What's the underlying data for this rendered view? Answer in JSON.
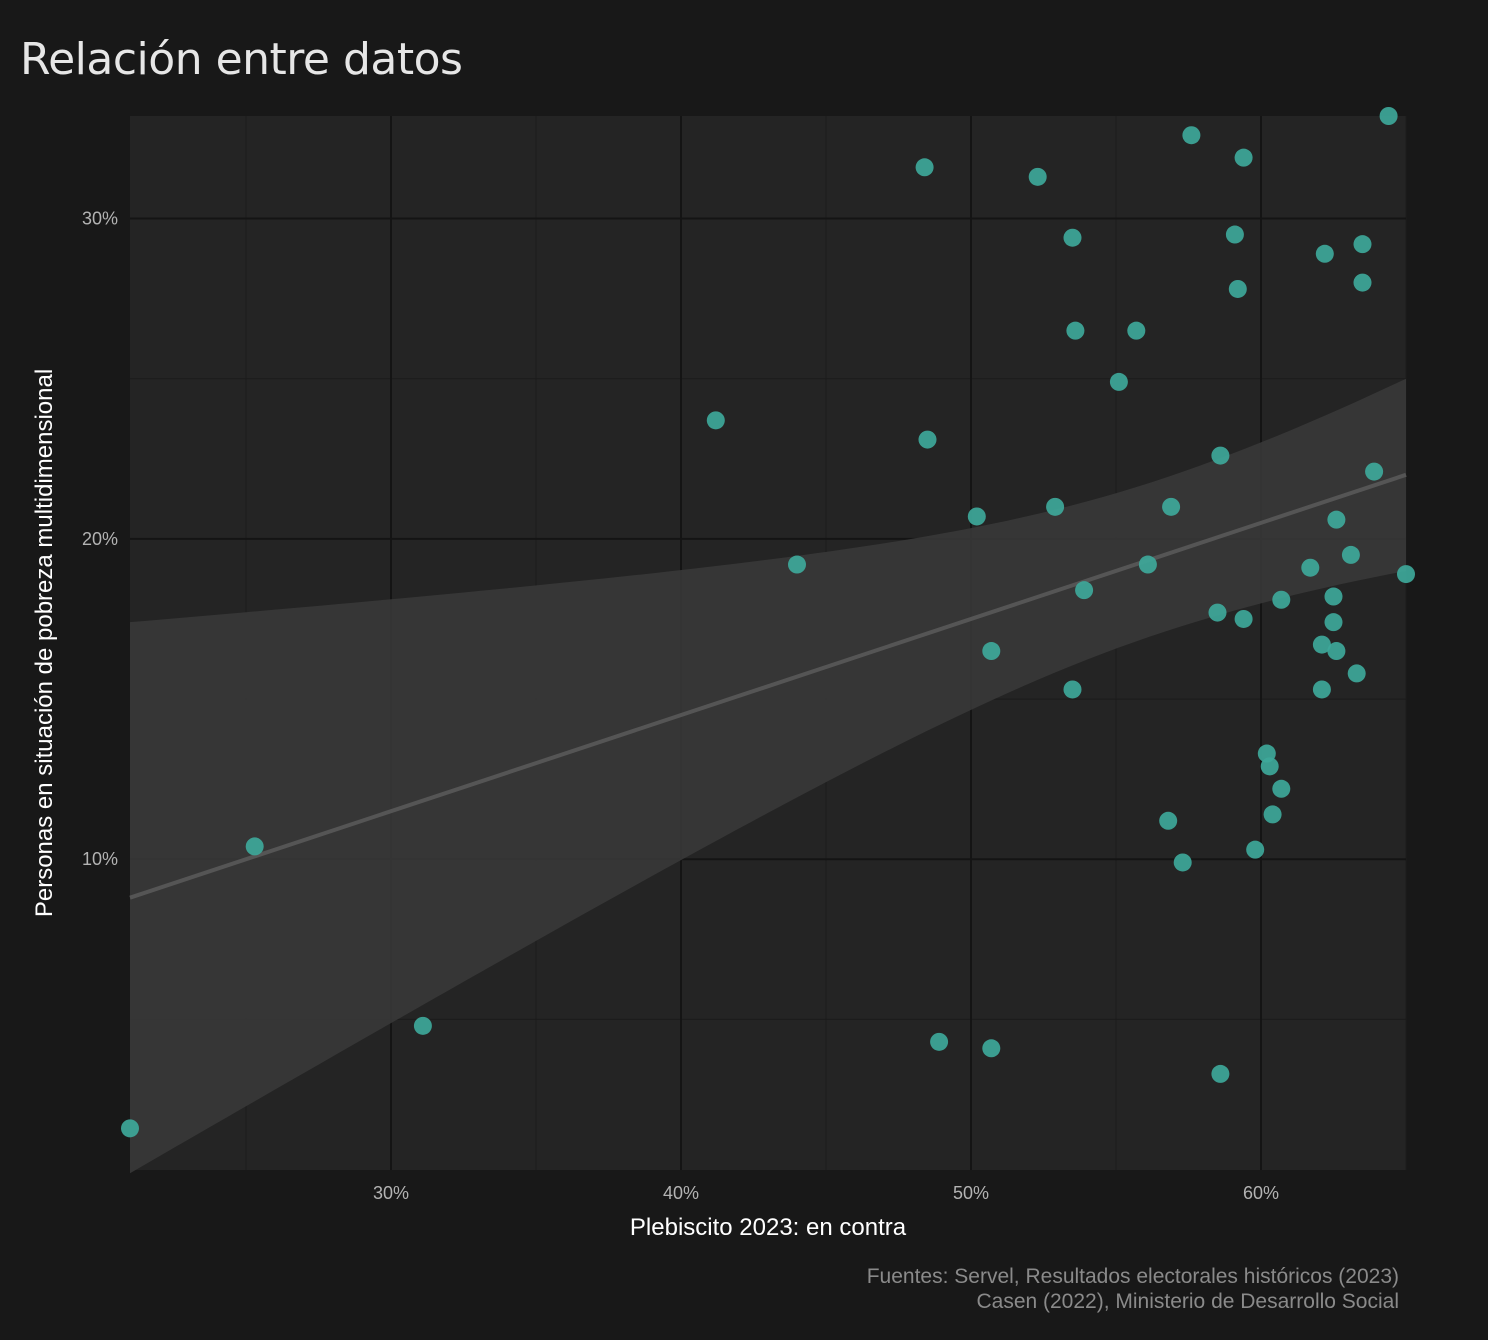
{
  "title": "Relación entre datos",
  "caption": [
    "Fuentes: Servel, Resultados electorales históricos (2023)",
    "Casen (2022), Ministerio de Desarrollo Social"
  ],
  "colors": {
    "background": "#181818",
    "panel": "#242424",
    "point": "#3ea89a",
    "trend": "#555555",
    "band": "#3a3a3a"
  },
  "chart_data": {
    "type": "scatter",
    "xlabel": "Plebiscito 2023: en contra",
    "ylabel": "Personas en situación de pobreza multidimensional",
    "xlim": [
      21,
      65
    ],
    "ylim": [
      0.3,
      33.2
    ],
    "xticks": [
      30,
      40,
      50,
      60
    ],
    "xtick_labels": [
      "30%",
      "40%",
      "50%",
      "60%"
    ],
    "yticks": [
      10,
      20,
      30
    ],
    "ytick_labels": [
      "10%",
      "20%",
      "30%"
    ],
    "grid": true,
    "trend": {
      "method": "linear",
      "x": [
        21,
        65
      ],
      "y": [
        8.8,
        22.0
      ],
      "ci_lower": [
        0.2,
        19.0
      ],
      "ci_upper": [
        17.2,
        25.0
      ]
    },
    "points": [
      {
        "x": 21.0,
        "y": 1.6
      },
      {
        "x": 25.3,
        "y": 10.4
      },
      {
        "x": 31.1,
        "y": 4.8
      },
      {
        "x": 41.2,
        "y": 23.7
      },
      {
        "x": 44.0,
        "y": 19.2
      },
      {
        "x": 48.4,
        "y": 31.6
      },
      {
        "x": 48.5,
        "y": 23.1
      },
      {
        "x": 48.9,
        "y": 4.3
      },
      {
        "x": 50.2,
        "y": 20.7
      },
      {
        "x": 50.7,
        "y": 16.5
      },
      {
        "x": 50.7,
        "y": 4.1
      },
      {
        "x": 52.3,
        "y": 31.3
      },
      {
        "x": 52.9,
        "y": 21.0
      },
      {
        "x": 53.5,
        "y": 29.4
      },
      {
        "x": 53.5,
        "y": 15.3
      },
      {
        "x": 53.6,
        "y": 26.5
      },
      {
        "x": 53.9,
        "y": 18.4
      },
      {
        "x": 55.1,
        "y": 24.9
      },
      {
        "x": 55.7,
        "y": 26.5
      },
      {
        "x": 56.1,
        "y": 19.2
      },
      {
        "x": 56.8,
        "y": 11.2
      },
      {
        "x": 56.9,
        "y": 21.0
      },
      {
        "x": 57.3,
        "y": 9.9
      },
      {
        "x": 57.6,
        "y": 32.6
      },
      {
        "x": 58.5,
        "y": 17.7
      },
      {
        "x": 58.6,
        "y": 22.6
      },
      {
        "x": 58.6,
        "y": 3.3
      },
      {
        "x": 59.1,
        "y": 29.5
      },
      {
        "x": 59.2,
        "y": 27.8
      },
      {
        "x": 59.4,
        "y": 31.9
      },
      {
        "x": 59.4,
        "y": 17.5
      },
      {
        "x": 59.8,
        "y": 10.3
      },
      {
        "x": 60.2,
        "y": 13.3
      },
      {
        "x": 60.3,
        "y": 12.9
      },
      {
        "x": 60.4,
        "y": 11.4
      },
      {
        "x": 60.7,
        "y": 18.1
      },
      {
        "x": 60.7,
        "y": 12.2
      },
      {
        "x": 61.7,
        "y": 19.1
      },
      {
        "x": 62.1,
        "y": 16.7
      },
      {
        "x": 62.1,
        "y": 15.3
      },
      {
        "x": 62.2,
        "y": 28.9
      },
      {
        "x": 62.5,
        "y": 18.2
      },
      {
        "x": 62.5,
        "y": 17.4
      },
      {
        "x": 62.6,
        "y": 16.5
      },
      {
        "x": 62.6,
        "y": 20.6
      },
      {
        "x": 63.1,
        "y": 19.5
      },
      {
        "x": 63.3,
        "y": 15.8
      },
      {
        "x": 63.5,
        "y": 29.2
      },
      {
        "x": 63.5,
        "y": 28.0
      },
      {
        "x": 63.9,
        "y": 22.1
      },
      {
        "x": 64.4,
        "y": 33.2
      },
      {
        "x": 65.0,
        "y": 18.9
      }
    ]
  }
}
